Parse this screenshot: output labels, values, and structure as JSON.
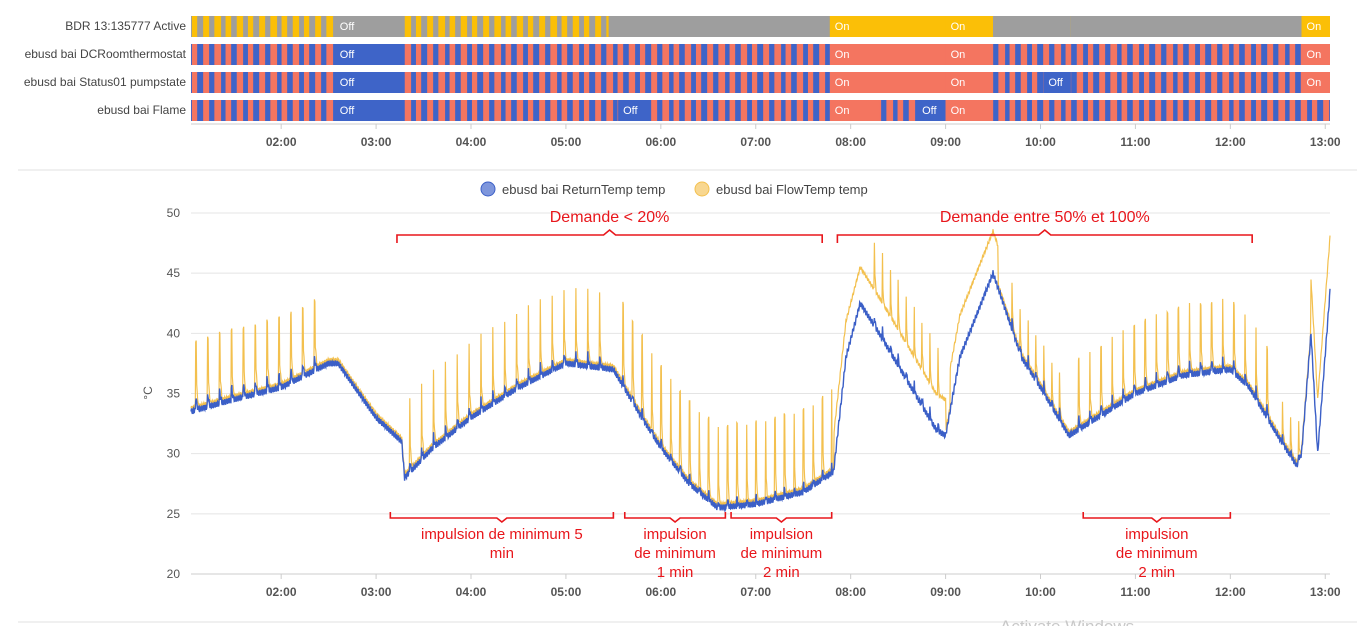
{
  "colors": {
    "on": "#fbbf07",
    "off_gray": "#9e9e9e",
    "blue": "#3e64c8",
    "salmon": "#f47560",
    "return_line": "#3b5fc7",
    "flow_line": "#f3c04e",
    "annotation": "#e8161b",
    "grid": "#e4e4e4"
  },
  "timeline": {
    "rows": [
      {
        "label": "BDR 13:135777 Active",
        "off_color": "#9e9e9e",
        "segments": [
          {
            "start": 2.565,
            "end": 3.25,
            "state": "off",
            "text": "Off"
          },
          {
            "start": 5.45,
            "end": 7.78,
            "state": "off",
            "text": ""
          },
          {
            "start": 7.78,
            "end": 9.0,
            "state": "on",
            "text": "On"
          },
          {
            "start": 9.0,
            "end": 9.5,
            "state": "on",
            "text": "On"
          },
          {
            "start": 9.5,
            "end": 10.32,
            "state": "off",
            "text": ""
          },
          {
            "start": 10.32,
            "end": 12.75,
            "state": "off",
            "text": ""
          },
          {
            "start": 12.75,
            "end": 13.05,
            "state": "on",
            "text": "On"
          }
        ]
      },
      {
        "label": "ebusd bai DCRoomthermostat",
        "off_color": "#3e64c8",
        "segments": [
          {
            "start": 2.565,
            "end": 3.25,
            "state": "off",
            "text": "Off"
          },
          {
            "start": 7.78,
            "end": 9.0,
            "state": "on",
            "text": "On"
          },
          {
            "start": 9.0,
            "end": 9.5,
            "state": "on",
            "text": "On"
          },
          {
            "start": 12.75,
            "end": 13.05,
            "state": "on",
            "text": "On"
          }
        ]
      },
      {
        "label": "ebusd bai Status01 pumpstate",
        "off_color": "#3e64c8",
        "segments": [
          {
            "start": 2.565,
            "end": 3.25,
            "state": "off",
            "text": "Off"
          },
          {
            "start": 7.78,
            "end": 9.0,
            "state": "on",
            "text": "On"
          },
          {
            "start": 9.0,
            "end": 9.5,
            "state": "on",
            "text": "On"
          },
          {
            "start": 10.03,
            "end": 10.32,
            "state": "off",
            "text": "Off"
          },
          {
            "start": 12.75,
            "end": 13.05,
            "state": "on",
            "text": "On"
          }
        ]
      },
      {
        "label": "ebusd bai Flame",
        "off_color": "#3e64c8",
        "segments": [
          {
            "start": 2.565,
            "end": 3.25,
            "state": "off",
            "text": "Off"
          },
          {
            "start": 5.55,
            "end": 5.85,
            "state": "off",
            "text": "Off"
          },
          {
            "start": 7.78,
            "end": 8.3,
            "state": "on",
            "text": "On"
          },
          {
            "start": 8.7,
            "end": 9.0,
            "state": "off",
            "text": "Off"
          },
          {
            "start": 9.0,
            "end": 9.5,
            "state": "on",
            "text": "On"
          }
        ]
      }
    ],
    "tick_labels": [
      "02:00",
      "03:00",
      "04:00",
      "05:00",
      "06:00",
      "07:00",
      "08:00",
      "09:00",
      "10:00",
      "11:00",
      "12:00",
      "13:00"
    ]
  },
  "chart_data": {
    "type": "line",
    "x_unit": "hours",
    "xlim": [
      1.05,
      13.05
    ],
    "ylim": [
      20,
      50
    ],
    "yticks": [
      20,
      25,
      30,
      35,
      40,
      45,
      50
    ],
    "ylabel": "°C",
    "xlabel": "",
    "grid": true,
    "legend": "top-center",
    "x_tick_labels": [
      "02:00",
      "03:00",
      "04:00",
      "05:00",
      "06:00",
      "07:00",
      "08:00",
      "09:00",
      "10:00",
      "11:00",
      "12:00",
      "13:00"
    ],
    "base_curve": [
      [
        1.05,
        33.5
      ],
      [
        1.5,
        34.5
      ],
      [
        2.0,
        35.5
      ],
      [
        2.5,
        37.5
      ],
      [
        2.6,
        37.5
      ],
      [
        3.0,
        33.0
      ],
      [
        3.27,
        31.0
      ],
      [
        3.3,
        28.0
      ],
      [
        3.6,
        30.5
      ],
      [
        4.0,
        33.0
      ],
      [
        4.5,
        35.5
      ],
      [
        5.0,
        37.5
      ],
      [
        5.5,
        37.0
      ],
      [
        5.8,
        33.0
      ],
      [
        6.0,
        30.5
      ],
      [
        6.3,
        27.5
      ],
      [
        6.6,
        25.5
      ],
      [
        7.0,
        25.8
      ],
      [
        7.5,
        26.8
      ],
      [
        7.82,
        28.5
      ],
      [
        7.95,
        38.0
      ],
      [
        8.1,
        42.5
      ],
      [
        8.3,
        40.0
      ],
      [
        8.6,
        36.0
      ],
      [
        8.9,
        32.0
      ],
      [
        9.0,
        31.5
      ],
      [
        9.15,
        38.0
      ],
      [
        9.5,
        45.0
      ],
      [
        9.8,
        38.0
      ],
      [
        10.0,
        35.5
      ],
      [
        10.3,
        31.5
      ],
      [
        10.6,
        33.0
      ],
      [
        11.0,
        35.0
      ],
      [
        11.5,
        36.5
      ],
      [
        12.0,
        37.0
      ],
      [
        12.2,
        35.5
      ],
      [
        12.5,
        31.5
      ],
      [
        12.7,
        29.0
      ],
      [
        12.75,
        30.0
      ],
      [
        12.85,
        40.0
      ],
      [
        12.92,
        30.0
      ],
      [
        13.05,
        43.5
      ]
    ],
    "pulse_groups": [
      {
        "start": 1.1,
        "end": 2.45,
        "interval_min": 7.5,
        "amp_flow": 5.5,
        "amp_return": 1.0
      },
      {
        "start": 3.35,
        "end": 5.45,
        "interval_min": 7.5,
        "amp_flow": 6.0,
        "amp_return": 1.0
      },
      {
        "start": 5.6,
        "end": 7.8,
        "interval_min": 6.0,
        "amp_flow": 6.5,
        "amp_return": 0.6
      },
      {
        "start": 8.25,
        "end": 8.95,
        "interval_min": 5.0,
        "amp_flow": 4.0,
        "amp_return": 0.8
      },
      {
        "start": 9.7,
        "end": 10.25,
        "interval_min": 5.0,
        "amp_flow": 3.5,
        "amp_return": 0.8
      },
      {
        "start": 10.4,
        "end": 12.4,
        "interval_min": 7.0,
        "amp_flow": 5.5,
        "amp_return": 0.9
      },
      {
        "start": 12.55,
        "end": 12.75,
        "interval_min": 5.0,
        "amp_flow": 3.0,
        "amp_return": 0.5
      }
    ],
    "flow_offset_segments": [
      {
        "start": 7.82,
        "end": 9.0,
        "offset": 3.0
      },
      {
        "start": 9.05,
        "end": 9.55,
        "offset": 3.5
      },
      {
        "start": 12.85,
        "end": 13.05,
        "offset": 4.5
      }
    ],
    "series": [
      {
        "name": "ebusd bai ReturnTemp temp",
        "color": "#3b5fc7"
      },
      {
        "name": "ebusd bai FlowTemp temp",
        "color": "#f3c04e"
      }
    ]
  },
  "annotations": {
    "braces_top": [
      {
        "text": "Demande < 20%",
        "start": 3.22,
        "end": 7.7
      },
      {
        "text": "Demande entre 50% et 100%",
        "start": 7.86,
        "end": 12.23
      }
    ],
    "braces_bottom": [
      {
        "lines": [
          "impulsion de minimum 5",
          "min"
        ],
        "start": 3.15,
        "end": 5.5
      },
      {
        "lines": [
          "impulsion",
          "de minimum",
          "1 min"
        ],
        "start": 5.62,
        "end": 6.68
      },
      {
        "lines": [
          "impulsion",
          "de minimum",
          "2 min"
        ],
        "start": 6.74,
        "end": 7.8
      },
      {
        "lines": [
          "impulsion",
          "de minimum",
          "2 min"
        ],
        "start": 10.45,
        "end": 12.0
      }
    ]
  },
  "watermark": "Activate Windows"
}
